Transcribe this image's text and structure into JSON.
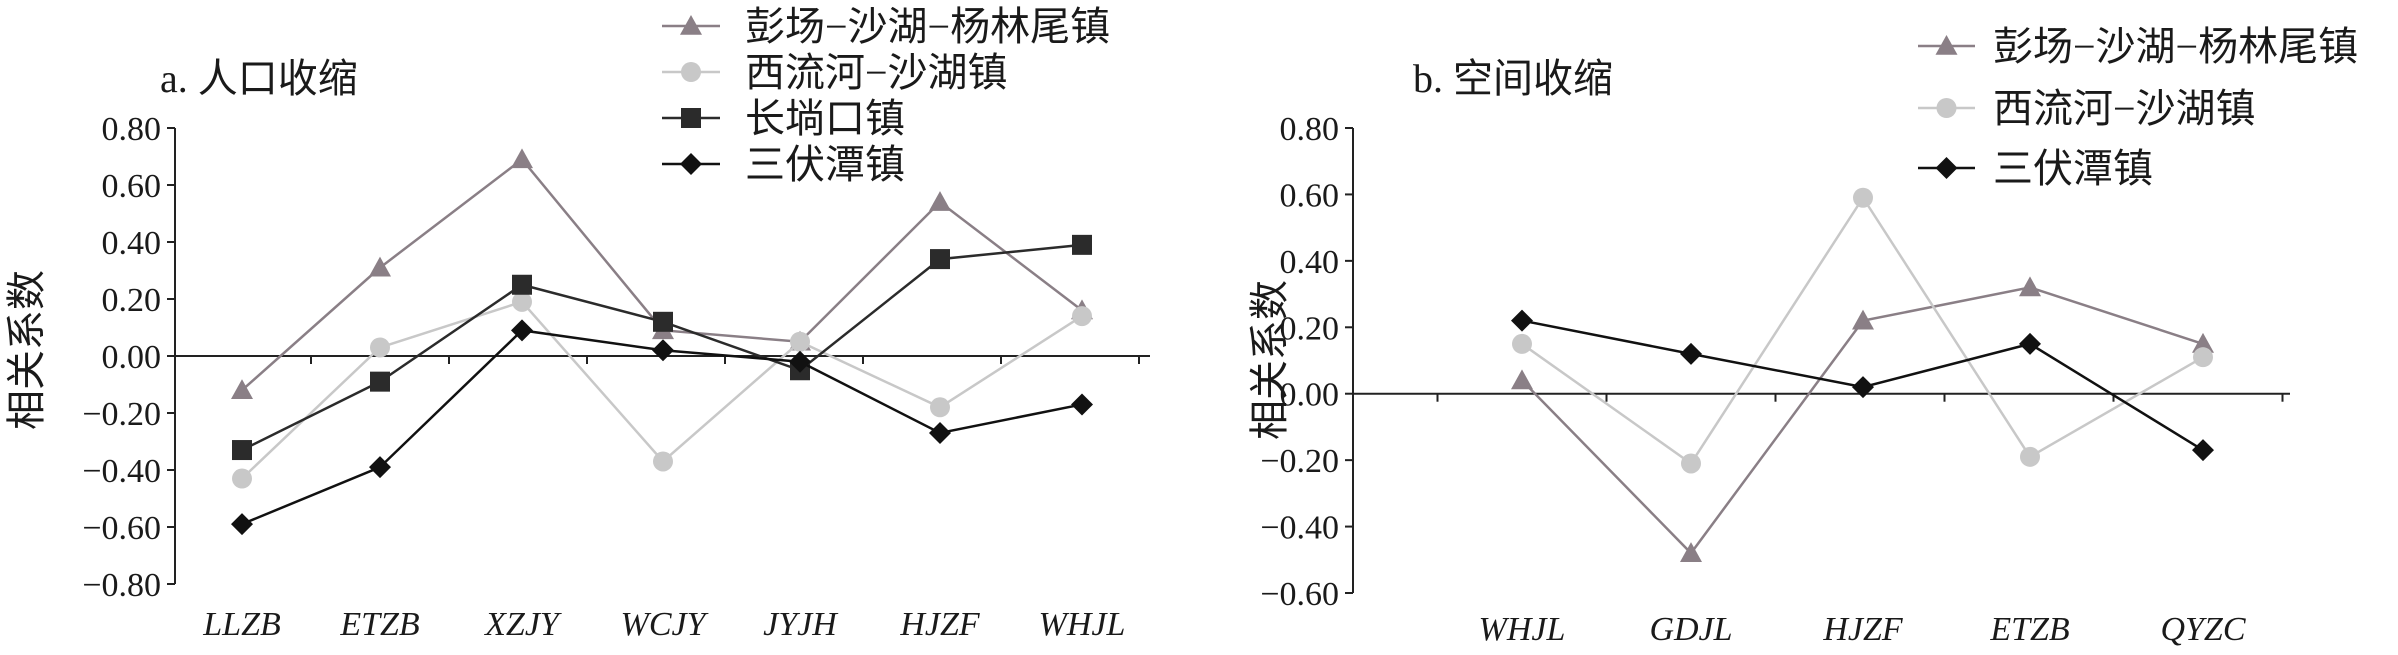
{
  "chart_data": [
    {
      "type": "line",
      "title": "a. 人口收缩",
      "xlabel": "",
      "ylabel": "相关系数",
      "ylim": [
        -0.8,
        0.8
      ],
      "yticks": [
        "0.80",
        "0.60",
        "0.40",
        "0.20",
        "0.00",
        "−0.20",
        "−0.40",
        "−0.60",
        "−0.80"
      ],
      "categories": [
        "LLZB",
        "ETZB",
        "XZJY",
        "WCJY",
        "JYJH",
        "HJZF",
        "WHJL"
      ],
      "grid": false,
      "legend": "top-right",
      "series": [
        {
          "name": "彭场−沙湖−杨林尾镇",
          "marker": "triangle",
          "color": "#8a7f86",
          "values": [
            -0.12,
            0.31,
            0.69,
            0.09,
            0.05,
            0.54,
            0.16
          ]
        },
        {
          "name": "西流河−沙湖镇",
          "marker": "circle",
          "color": "#c8c8c8",
          "values": [
            -0.43,
            0.03,
            0.19,
            -0.37,
            0.05,
            -0.18,
            0.14
          ]
        },
        {
          "name": "长埫口镇",
          "marker": "square",
          "color": "#2b2b2b",
          "values": [
            -0.33,
            -0.09,
            0.25,
            0.12,
            -0.05,
            0.34,
            0.39
          ]
        },
        {
          "name": "三伏潭镇",
          "marker": "diamond",
          "color": "#111111",
          "values": [
            -0.59,
            -0.39,
            0.09,
            0.02,
            -0.02,
            -0.27,
            -0.17
          ]
        }
      ]
    },
    {
      "type": "line",
      "title": "b. 空间收缩",
      "xlabel": "",
      "ylabel": "相关系数",
      "ylim": [
        -0.6,
        0.8
      ],
      "yticks": [
        "0.80",
        "0.60",
        "0.40",
        "0.20",
        "0.00",
        "−0.20",
        "−0.40",
        "−0.60"
      ],
      "categories": [
        "WHJL",
        "GDJL",
        "HJZF",
        "ETZB",
        "QYZC"
      ],
      "grid": false,
      "legend": "top-right",
      "series": [
        {
          "name": "彭场−沙湖−杨林尾镇",
          "marker": "triangle",
          "color": "#8a7f86",
          "values": [
            0.04,
            -0.48,
            0.22,
            0.32,
            0.15
          ]
        },
        {
          "name": "西流河−沙湖镇",
          "marker": "circle",
          "color": "#c8c8c8",
          "values": [
            0.15,
            -0.21,
            0.59,
            -0.19,
            0.11
          ]
        },
        {
          "name": "三伏潭镇",
          "marker": "diamond",
          "color": "#111111",
          "values": [
            0.22,
            0.12,
            0.02,
            0.15,
            -0.17
          ]
        }
      ]
    }
  ]
}
